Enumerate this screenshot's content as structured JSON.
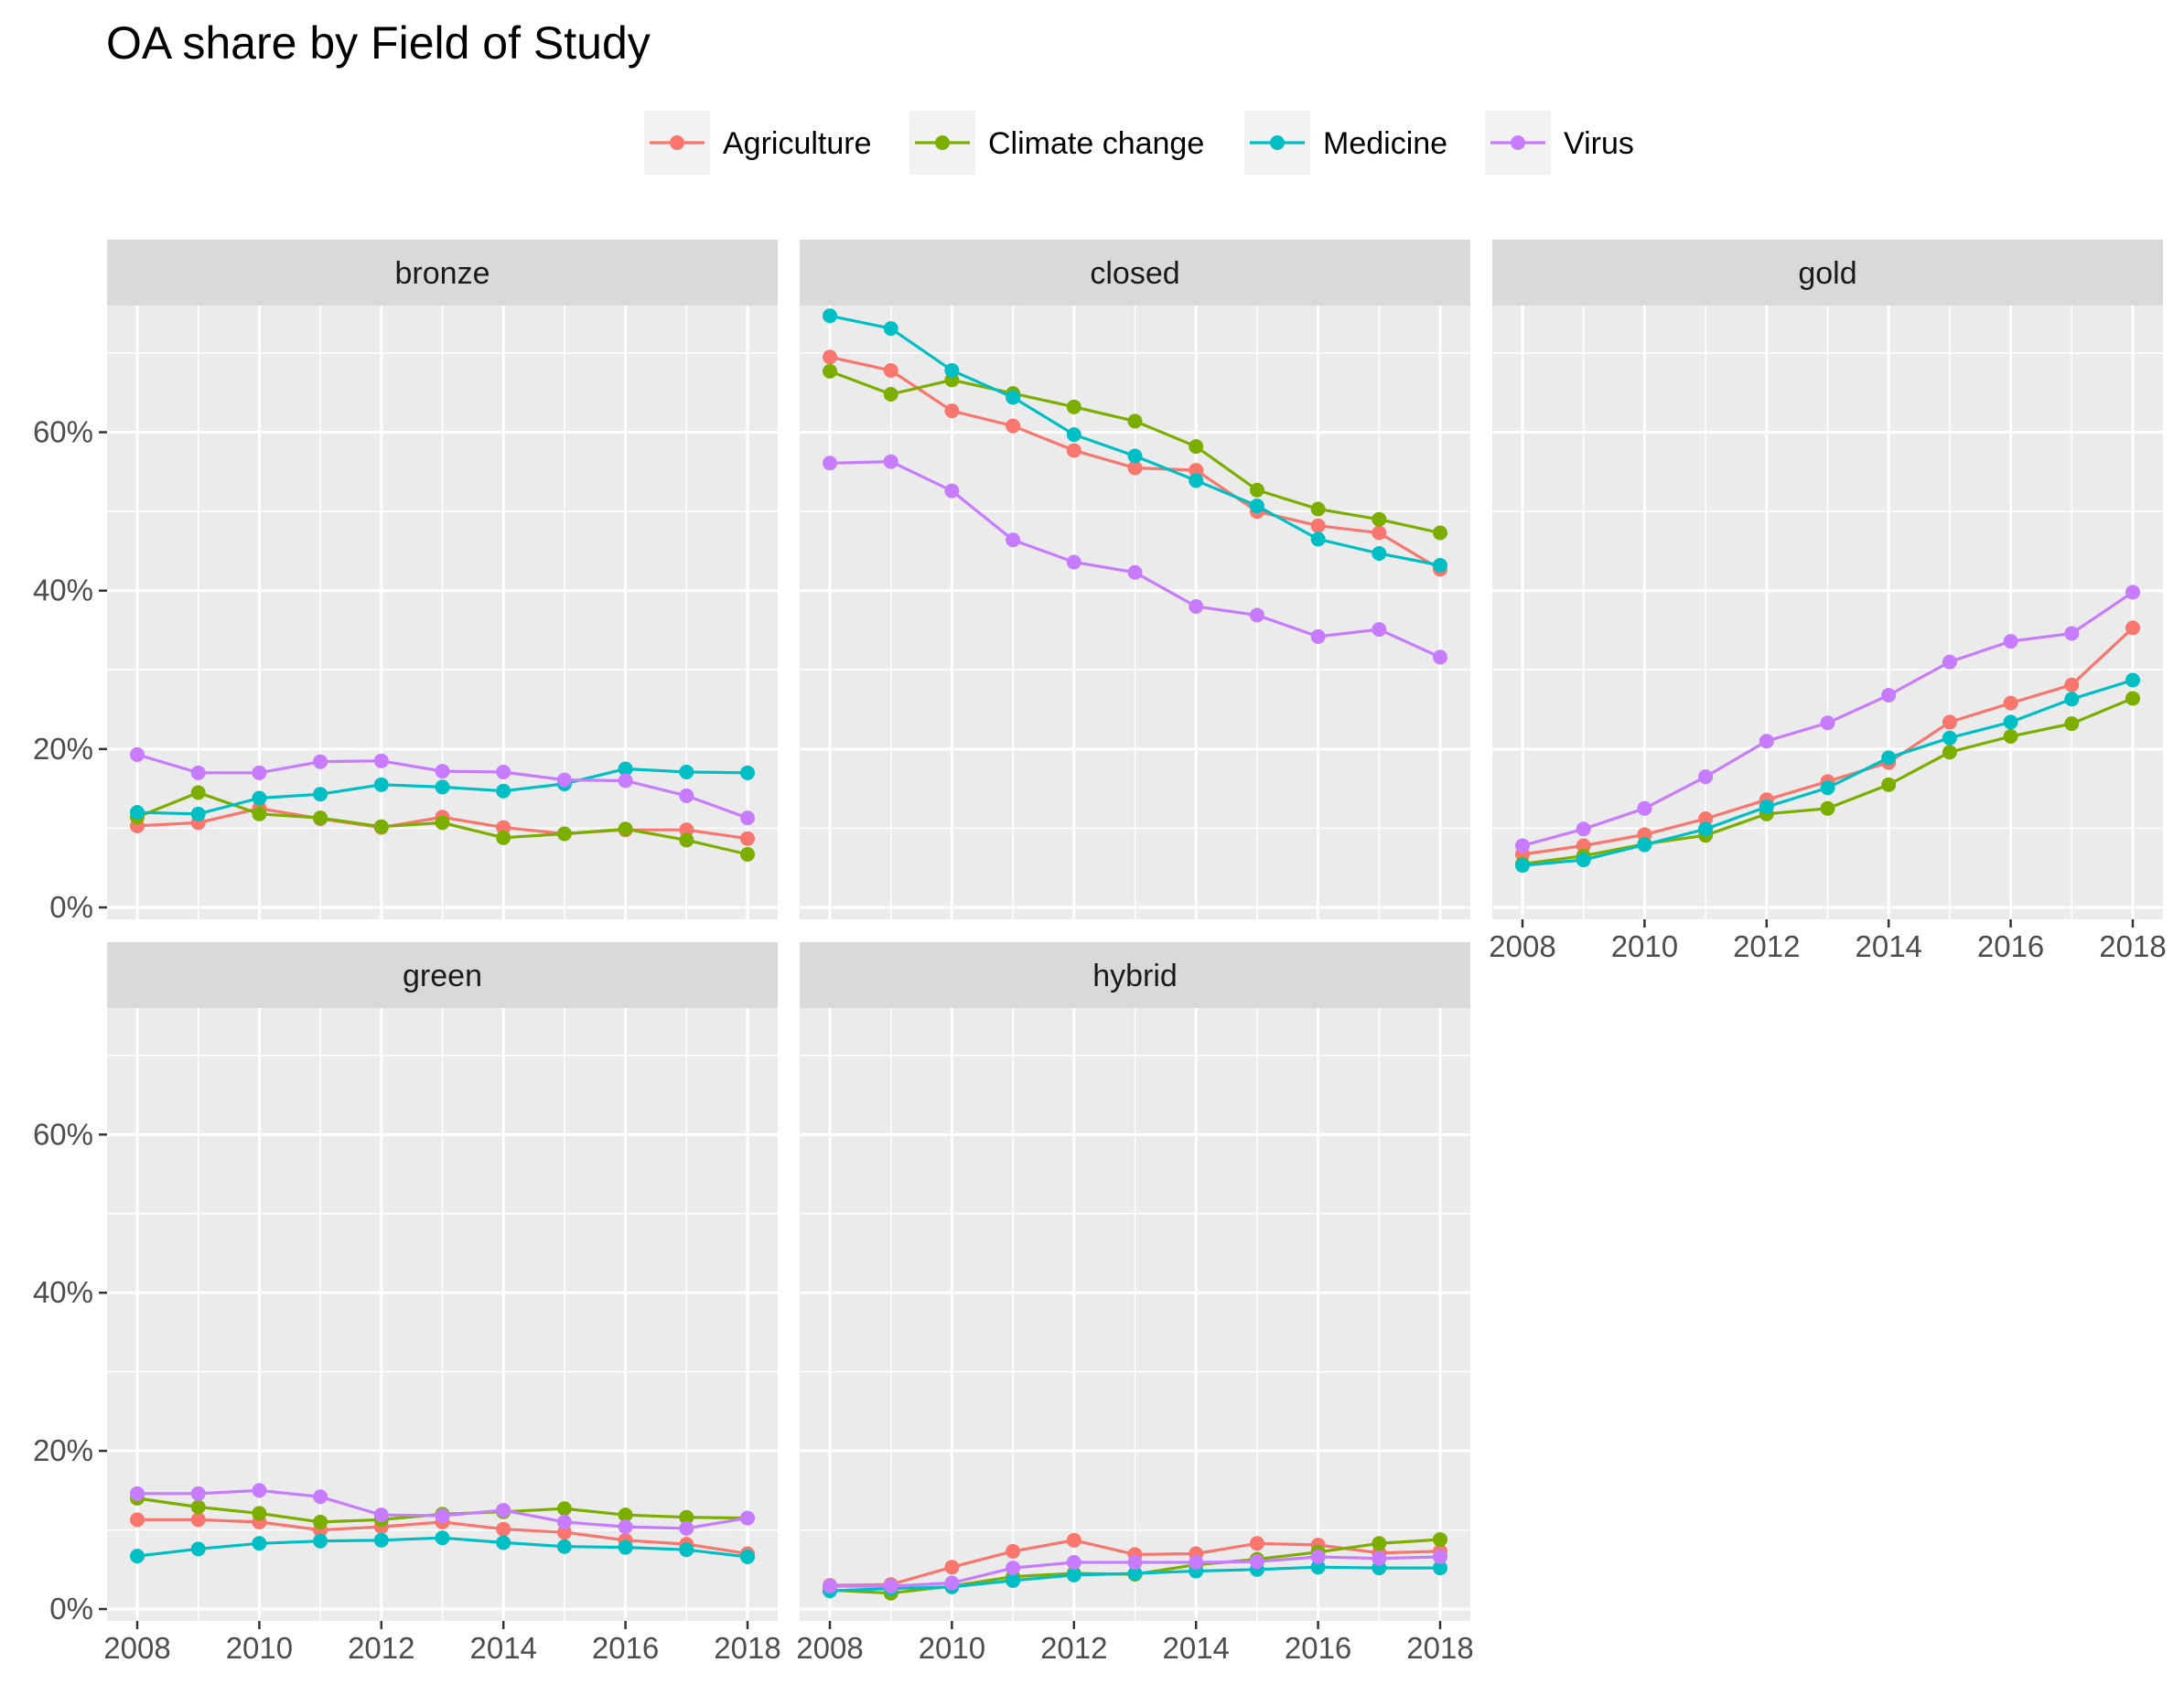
{
  "chart_data": {
    "type": "line",
    "title": "OA share by Field of Study",
    "xlabel": "",
    "ylabel": "",
    "x": [
      2008,
      2009,
      2010,
      2011,
      2012,
      2013,
      2014,
      2015,
      2016,
      2017,
      2018
    ],
    "x_ticks": [
      "2008",
      "2010",
      "2012",
      "2014",
      "2016",
      "2018"
    ],
    "y_ticks": [
      "0%",
      "20%",
      "40%",
      "60%"
    ],
    "ylim": [
      0,
      0.76
    ],
    "grid": true,
    "legend": {
      "placement": "top",
      "entries": [
        {
          "name": "Agriculture",
          "color": "#F8766D"
        },
        {
          "name": "Climate change",
          "color": "#7CAE00"
        },
        {
          "name": "Medicine",
          "color": "#00BFC4"
        },
        {
          "name": "Virus",
          "color": "#C77CFF"
        }
      ]
    },
    "facets": [
      {
        "label": "bronze",
        "series": [
          {
            "name": "Agriculture",
            "values": [
              0.103,
              0.107,
              0.125,
              0.112,
              0.101,
              0.114,
              0.101,
              0.093,
              0.098,
              0.098,
              0.087
            ]
          },
          {
            "name": "Climate change",
            "values": [
              0.114,
              0.145,
              0.118,
              0.113,
              0.102,
              0.107,
              0.088,
              0.093,
              0.099,
              0.085,
              0.067
            ]
          },
          {
            "name": "Medicine",
            "values": [
              0.12,
              0.118,
              0.138,
              0.143,
              0.155,
              0.152,
              0.147,
              0.156,
              0.175,
              0.171,
              0.17
            ]
          },
          {
            "name": "Virus",
            "values": [
              0.193,
              0.17,
              0.17,
              0.184,
              0.185,
              0.172,
              0.171,
              0.161,
              0.16,
              0.141,
              0.113
            ]
          }
        ]
      },
      {
        "label": "closed",
        "series": [
          {
            "name": "Agriculture",
            "values": [
              0.695,
              0.678,
              0.627,
              0.608,
              0.577,
              0.555,
              0.552,
              0.5,
              0.482,
              0.473,
              0.427
            ]
          },
          {
            "name": "Climate change",
            "values": [
              0.677,
              0.648,
              0.666,
              0.649,
              0.632,
              0.614,
              0.582,
              0.527,
              0.503,
              0.49,
              0.473
            ]
          },
          {
            "name": "Medicine",
            "values": [
              0.747,
              0.731,
              0.678,
              0.644,
              0.597,
              0.57,
              0.539,
              0.507,
              0.465,
              0.447,
              0.432
            ]
          },
          {
            "name": "Virus",
            "values": [
              0.561,
              0.563,
              0.526,
              0.464,
              0.436,
              0.423,
              0.38,
              0.369,
              0.342,
              0.351,
              0.316
            ]
          }
        ]
      },
      {
        "label": "gold",
        "series": [
          {
            "name": "Agriculture",
            "values": [
              0.067,
              0.078,
              0.092,
              0.112,
              0.136,
              0.159,
              0.183,
              0.234,
              0.258,
              0.281,
              0.353
            ]
          },
          {
            "name": "Climate change",
            "values": [
              0.055,
              0.065,
              0.08,
              0.091,
              0.118,
              0.125,
              0.155,
              0.196,
              0.216,
              0.232,
              0.264
            ]
          },
          {
            "name": "Medicine",
            "values": [
              0.053,
              0.06,
              0.079,
              0.099,
              0.127,
              0.151,
              0.189,
              0.214,
              0.234,
              0.263,
              0.287
            ]
          },
          {
            "name": "Virus",
            "values": [
              0.078,
              0.099,
              0.125,
              0.165,
              0.21,
              0.233,
              0.268,
              0.31,
              0.336,
              0.346,
              0.398
            ]
          }
        ]
      },
      {
        "label": "green",
        "series": [
          {
            "name": "Agriculture",
            "values": [
              0.113,
              0.113,
              0.11,
              0.1,
              0.104,
              0.11,
              0.101,
              0.097,
              0.087,
              0.082,
              0.07
            ]
          },
          {
            "name": "Climate change",
            "values": [
              0.14,
              0.129,
              0.121,
              0.11,
              0.113,
              0.12,
              0.123,
              0.127,
              0.119,
              0.116,
              0.115
            ]
          },
          {
            "name": "Medicine",
            "values": [
              0.067,
              0.076,
              0.083,
              0.086,
              0.087,
              0.09,
              0.084,
              0.079,
              0.078,
              0.075,
              0.066
            ]
          },
          {
            "name": "Virus",
            "values": [
              0.146,
              0.146,
              0.15,
              0.142,
              0.119,
              0.118,
              0.125,
              0.11,
              0.104,
              0.102,
              0.115
            ]
          }
        ]
      },
      {
        "label": "hybrid",
        "series": [
          {
            "name": "Agriculture",
            "values": [
              0.03,
              0.031,
              0.053,
              0.073,
              0.087,
              0.069,
              0.07,
              0.083,
              0.081,
              0.071,
              0.073
            ]
          },
          {
            "name": "Climate change",
            "values": [
              0.024,
              0.02,
              0.029,
              0.041,
              0.045,
              0.044,
              0.056,
              0.063,
              0.072,
              0.083,
              0.088
            ]
          },
          {
            "name": "Medicine",
            "values": [
              0.023,
              0.026,
              0.028,
              0.036,
              0.043,
              0.045,
              0.048,
              0.05,
              0.053,
              0.052,
              0.052
            ]
          },
          {
            "name": "Virus",
            "values": [
              0.029,
              0.029,
              0.033,
              0.052,
              0.059,
              0.059,
              0.059,
              0.06,
              0.066,
              0.064,
              0.066
            ]
          }
        ]
      }
    ]
  }
}
